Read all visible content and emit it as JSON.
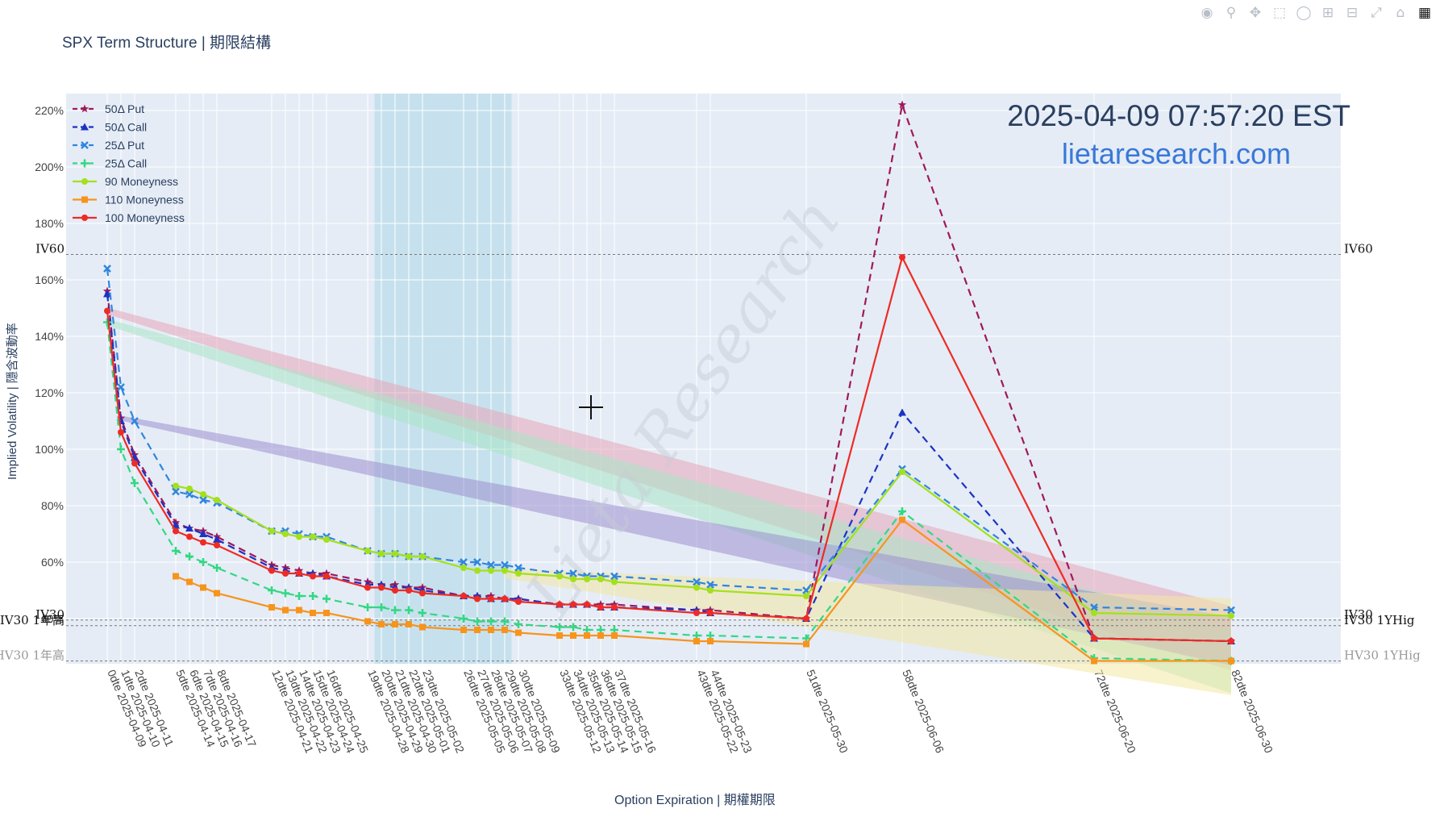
{
  "app": {
    "title": "SPX Term Structure | 期限結構",
    "timestamp": "2025-04-09 07:57:20 EST",
    "website": "lietaresearch.com",
    "watermark": "Lieta Research"
  },
  "modebar": {
    "buttons": [
      "camera-icon",
      "zoom-icon",
      "pan-icon",
      "box-select-icon",
      "lasso-icon",
      "zoom-in-icon",
      "zoom-out-icon",
      "autoscale-icon",
      "reset-axes-icon",
      "plotly-logo-icon"
    ]
  },
  "chart_data": {
    "type": "line",
    "title": "SPX Term Structure | 期限結構",
    "xlabel": "Option Expiration | 期權期限",
    "ylabel": "Implied Volatility | 隱含波動率",
    "ylim": [
      24,
      226
    ],
    "y_ticks": [
      "40%",
      "60%",
      "80%",
      "100%",
      "120%",
      "140%",
      "160%",
      "180%",
      "200%",
      "220%"
    ],
    "y_tick_values": [
      40,
      60,
      80,
      100,
      120,
      140,
      160,
      180,
      200,
      220
    ],
    "x_range": [
      -3,
      90
    ],
    "x_ticks": [
      {
        "dte": 0,
        "label": "0dte 2025-04-09"
      },
      {
        "dte": 1,
        "label": "1dte 2025-04-10"
      },
      {
        "dte": 2,
        "label": "2dte 2025-04-11"
      },
      {
        "dte": 5,
        "label": "5dte 2025-04-14"
      },
      {
        "dte": 6,
        "label": "6dte 2025-04-15"
      },
      {
        "dte": 7,
        "label": "7dte 2025-04-16"
      },
      {
        "dte": 8,
        "label": "8dte 2025-04-17"
      },
      {
        "dte": 12,
        "label": "12dte 2025-04-21"
      },
      {
        "dte": 13,
        "label": "13dte 2025-04-22"
      },
      {
        "dte": 14,
        "label": "14dte 2025-04-23"
      },
      {
        "dte": 15,
        "label": "15dte 2025-04-24"
      },
      {
        "dte": 16,
        "label": "16dte 2025-04-25"
      },
      {
        "dte": 19,
        "label": "19dte 2025-04-28"
      },
      {
        "dte": 20,
        "label": "20dte 2025-04-29"
      },
      {
        "dte": 21,
        "label": "21dte 2025-04-30"
      },
      {
        "dte": 22,
        "label": "22dte 2025-05-01"
      },
      {
        "dte": 23,
        "label": "23dte 2025-05-02"
      },
      {
        "dte": 26,
        "label": "26dte 2025-05-05"
      },
      {
        "dte": 27,
        "label": "27dte 2025-05-06"
      },
      {
        "dte": 28,
        "label": "28dte 2025-05-07"
      },
      {
        "dte": 29,
        "label": "29dte 2025-05-08"
      },
      {
        "dte": 30,
        "label": "30dte 2025-05-09"
      },
      {
        "dte": 33,
        "label": "33dte 2025-05-12"
      },
      {
        "dte": 34,
        "label": "34dte 2025-05-13"
      },
      {
        "dte": 35,
        "label": "35dte 2025-05-14"
      },
      {
        "dte": 36,
        "label": "36dte 2025-05-15"
      },
      {
        "dte": 37,
        "label": "37dte 2025-05-16"
      },
      {
        "dte": 43,
        "label": "43dte 2025-05-22"
      },
      {
        "dte": 44,
        "label": "44dte 2025-05-23"
      },
      {
        "dte": 51,
        "label": "51dte 2025-05-30"
      },
      {
        "dte": 58,
        "label": "58dte 2025-06-06"
      },
      {
        "dte": 72,
        "label": "72dte 2025-06-20"
      },
      {
        "dte": 82,
        "label": "82dte 2025-06-30"
      }
    ],
    "shaded_x_range": [
      19.5,
      29.5
    ],
    "reference_lines": [
      {
        "label_left": "IV60",
        "label_right": "IV60",
        "y": 169
      },
      {
        "label_left": "IV30",
        "label_right": "IV30",
        "y": 39.5
      },
      {
        "label_left": "IV30 1年高",
        "label_right": "IV30 1YHig",
        "y": 37.5
      },
      {
        "label_left": "HV30 1年高",
        "label_right": "HV30 1YHig",
        "y": 25
      }
    ],
    "legend_position": "top-left",
    "series": [
      {
        "name": "50Δ Put",
        "color": "#a0185a",
        "dash": "dash",
        "marker": "star",
        "x": [
          0,
          1,
          2,
          5,
          6,
          7,
          8,
          12,
          13,
          14,
          15,
          16,
          19,
          20,
          21,
          22,
          23,
          26,
          27,
          28,
          29,
          30,
          33,
          34,
          35,
          36,
          37,
          43,
          44,
          51,
          58,
          72,
          82
        ],
        "y": [
          156,
          111,
          98,
          74,
          72,
          71,
          69,
          59,
          58,
          57,
          56,
          56,
          53,
          52,
          52,
          51,
          51,
          48,
          48,
          48,
          47,
          47,
          45,
          45,
          45,
          45,
          45,
          43,
          43,
          40,
          222,
          33,
          32
        ]
      },
      {
        "name": "50Δ Call",
        "color": "#1a33c4",
        "dash": "dash",
        "marker": "triangle",
        "x": [
          0,
          1,
          2,
          5,
          6,
          7,
          8,
          12,
          13,
          14,
          15,
          16,
          19,
          20,
          21,
          22,
          23,
          26,
          27,
          28,
          29,
          30,
          33,
          34,
          35,
          36,
          37,
          43,
          44,
          51,
          58,
          72,
          82
        ],
        "y": [
          155,
          110,
          97,
          73,
          72,
          70,
          68,
          58,
          57,
          56,
          56,
          55,
          52,
          52,
          51,
          51,
          50,
          48,
          48,
          47,
          47,
          47,
          45,
          45,
          45,
          44,
          44,
          43,
          42,
          40,
          113,
          33,
          32
        ]
      },
      {
        "name": "25Δ Put",
        "color": "#2f86e0",
        "dash": "dash",
        "marker": "x",
        "x": [
          0,
          1,
          2,
          5,
          6,
          7,
          8,
          12,
          13,
          14,
          15,
          16,
          19,
          20,
          21,
          22,
          23,
          26,
          27,
          28,
          29,
          30,
          33,
          34,
          35,
          36,
          37,
          43,
          44,
          51,
          58,
          72,
          82
        ],
        "y": [
          164,
          122,
          110,
          85,
          84,
          82,
          81,
          71,
          71,
          70,
          69,
          69,
          64,
          63,
          63,
          62,
          62,
          60,
          60,
          59,
          59,
          58,
          56,
          56,
          55,
          55,
          55,
          53,
          52,
          50,
          93,
          44,
          43
        ]
      },
      {
        "name": "25Δ Call",
        "color": "#33d883",
        "dash": "dash",
        "marker": "cross",
        "x": [
          0,
          1,
          2,
          5,
          6,
          7,
          8,
          12,
          13,
          14,
          15,
          16,
          19,
          20,
          21,
          22,
          23,
          26,
          27,
          28,
          29,
          30,
          33,
          34,
          35,
          36,
          37,
          43,
          44,
          51,
          58,
          72,
          82
        ],
        "y": [
          145,
          100,
          88,
          64,
          62,
          60,
          58,
          50,
          49,
          48,
          48,
          47,
          44,
          44,
          43,
          43,
          42,
          40,
          39,
          39,
          39,
          38,
          37,
          37,
          36,
          36,
          36,
          34,
          34,
          33,
          78,
          26,
          25
        ]
      },
      {
        "name": "90 Moneyness",
        "color": "#a4e01c",
        "dash": "solid",
        "marker": "circle",
        "x": [
          5,
          6,
          7,
          8,
          12,
          13,
          14,
          15,
          16,
          19,
          20,
          21,
          22,
          23,
          26,
          27,
          28,
          29,
          30,
          33,
          34,
          35,
          36,
          37,
          43,
          44,
          51,
          58,
          72,
          82
        ],
        "y": [
          87,
          86,
          84,
          82,
          71,
          70,
          69,
          69,
          68,
          64,
          63,
          63,
          62,
          62,
          58,
          57,
          57,
          57,
          56,
          55,
          54,
          54,
          54,
          53,
          51,
          50,
          48,
          92,
          42,
          41
        ]
      },
      {
        "name": "110 Moneyness",
        "color": "#f7941d",
        "dash": "solid",
        "marker": "square",
        "x": [
          5,
          6,
          7,
          8,
          12,
          13,
          14,
          15,
          16,
          19,
          20,
          21,
          22,
          23,
          26,
          27,
          28,
          29,
          30,
          33,
          34,
          35,
          36,
          37,
          43,
          44,
          51,
          58,
          72,
          82
        ],
        "y": [
          55,
          53,
          51,
          49,
          44,
          43,
          43,
          42,
          42,
          39,
          38,
          38,
          38,
          37,
          36,
          36,
          36,
          36,
          35,
          34,
          34,
          34,
          34,
          34,
          32,
          32,
          31,
          75,
          25,
          25
        ]
      },
      {
        "name": "100 Moneyness",
        "color": "#ee2b25",
        "dash": "solid",
        "marker": "circle",
        "x": [
          0,
          1,
          2,
          5,
          6,
          7,
          8,
          12,
          13,
          14,
          15,
          16,
          19,
          20,
          21,
          22,
          23,
          26,
          27,
          28,
          29,
          30,
          33,
          34,
          35,
          36,
          37,
          43,
          44,
          51,
          58,
          72,
          82
        ],
        "y": [
          149,
          106,
          95,
          71,
          69,
          67,
          66,
          57,
          56,
          56,
          55,
          55,
          51,
          51,
          50,
          50,
          49,
          48,
          47,
          47,
          47,
          46,
          45,
          45,
          45,
          44,
          44,
          42,
          42,
          40,
          168,
          33,
          32
        ]
      }
    ],
    "fans": [
      {
        "color": "#e8a5b8",
        "from": [
          0,
          149
        ],
        "to": [
          82,
          33
        ],
        "width": 4
      },
      {
        "color": "#a9e5c4",
        "from": [
          0,
          145
        ],
        "to": [
          82,
          25
        ],
        "width": 4
      },
      {
        "color": "#9d8fcf",
        "from": [
          1,
          111
        ],
        "to": [
          82,
          32
        ],
        "width": 3
      },
      {
        "color": "#f3e7a4",
        "from": [
          29,
          56
        ],
        "to": [
          82,
          30
        ],
        "width": 6
      }
    ]
  }
}
